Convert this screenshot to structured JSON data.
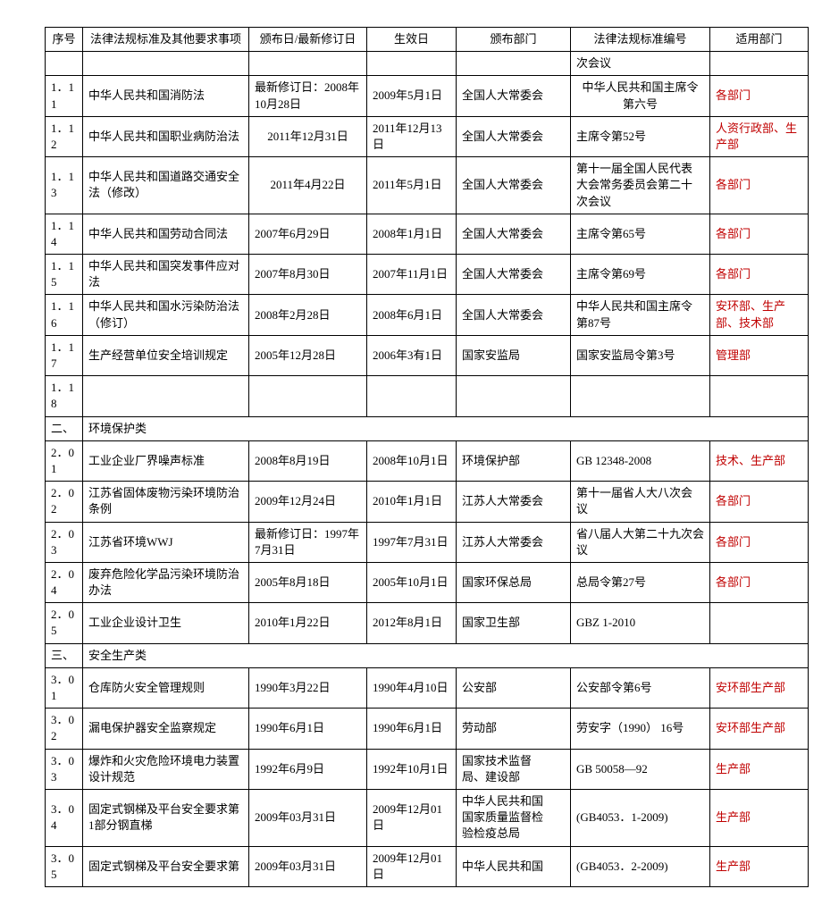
{
  "headers": [
    "序号",
    "法律法规标准及其他要求事项",
    "颁布日/最新修订日",
    "生效日",
    "颁布部门",
    "法律法规标准编号",
    "适用部门"
  ],
  "rows": [
    {
      "type": "row",
      "cells": [
        "",
        "",
        "",
        "",
        "",
        "次会议",
        ""
      ]
    },
    {
      "type": "row",
      "cells": [
        "1．11",
        "中华人民共和国消防法",
        "最新修订日：2008年 10月28日",
        "2009年5月1日",
        "全国人大常委会",
        "中华人民共和国主席令 第六号",
        "各部门"
      ],
      "red": true,
      "ctr5": true
    },
    {
      "type": "row",
      "cells": [
        "1．12",
        "中华人民共和国职业病防治法",
        "2011年12月31日",
        "2011年12月13日",
        "全国人大常委会",
        "主席令第52号",
        "人资行政部、生产部"
      ],
      "red": true,
      "ctr2": true
    },
    {
      "type": "row",
      "cells": [
        "1．13",
        "中华人民共和国道路交通安全法（修改）",
        "2011年4月22日",
        "2011年5月1日",
        "全国人大常委会",
        "第十一届全国人民代表 大会常务委员会第二十 次会议",
        "各部门"
      ],
      "red": true,
      "ctr2": true
    },
    {
      "type": "row",
      "cells": [
        "1．14",
        "中华人民共和国劳动合同法",
        "2007年6月29日",
        "2008年1月1日",
        "全国人大常委会",
        "主席令第65号",
        "各部门"
      ],
      "red": true
    },
    {
      "type": "row",
      "cells": [
        "1．15",
        "中华人民共和国突发事件应对法",
        "2007年8月30日",
        "2007年11月1日",
        "全国人大常委会",
        "主席令第69号",
        "各部门"
      ],
      "red": true
    },
    {
      "type": "row",
      "cells": [
        "1．16",
        "中华人民共和国水污染防治法（修订）",
        "2008年2月28日",
        "2008年6月1日",
        "全国人大常委会",
        "中华人民共和国主席令 第87号",
        "安环部、生产部、技术部"
      ],
      "red": true
    },
    {
      "type": "row",
      "cells": [
        "1．17",
        "生产经营单位安全培训规定",
        "2005年12月28日",
        "2006年3有1日",
        "国家安监局",
        "国家安监局令第3号",
        "管理部"
      ],
      "red": true
    },
    {
      "type": "row",
      "cells": [
        "1．18",
        "",
        "",
        "",
        "",
        "",
        ""
      ]
    },
    {
      "type": "sec",
      "label": "二、",
      "text": "环境保护类"
    },
    {
      "type": "row",
      "cells": [
        "2．01",
        "工业企业厂界噪声标准",
        "2008年8月19日",
        "2008年10月1日",
        "环境保护部",
        "GB 12348-2008",
        "技术、生产部"
      ],
      "red": true
    },
    {
      "type": "row",
      "cells": [
        "2．02",
        "江苏省固体废物污染环境防治 条例",
        "2009年12月24日",
        "2010年1月1日",
        "江苏人大常委会",
        "第十一届省人大八次会 议",
        "各部门"
      ],
      "red": true
    },
    {
      "type": "row",
      "cells": [
        "2．03",
        "江苏省环境WWJ",
        "最新修订日：1997年7月31日",
        "1997年7月31日",
        "江苏人大常委会",
        "省八届人大第二十九次会议",
        "各部门"
      ],
      "red": true
    },
    {
      "type": "row",
      "cells": [
        "2．04",
        "废弃危险化学品污染环境防治办法",
        "2005年8月18日",
        "2005年10月1日",
        "国家环保总局",
        "总局令第27号",
        "各部门"
      ],
      "red": true
    },
    {
      "type": "row",
      "cells": [
        "2．05",
        "工业企业设计卫生",
        "2010年1月22日",
        "2012年8月1日",
        "国家卫生部",
        "GBZ 1-2010",
        ""
      ]
    },
    {
      "type": "sec",
      "label": "三、",
      "text": "安全生产类"
    },
    {
      "type": "row",
      "cells": [
        "3．01",
        "仓库防火安全管理规则",
        "1990年3月22日",
        "1990年4月10日",
        "公安部",
        "公安部令第6号",
        "安环部生产部"
      ],
      "red": true
    },
    {
      "type": "row",
      "cells": [
        "3．02",
        "漏电保护器安全监察规定",
        "1990年6月1日",
        "1990年6月1日",
        "劳动部",
        "劳安字（1990） 16号",
        "安环部生产部"
      ],
      "red": true
    },
    {
      "type": "row",
      "cells": [
        "3．03",
        "爆炸和火灾危险环境电力装置 设计规范",
        "1992年6月9日",
        "1992年10月1日",
        "国家技术监督　局、建设部",
        "GB 50058—92",
        "生产部"
      ],
      "red": true
    },
    {
      "type": "row",
      "cells": [
        "3．04",
        "固定式钢梯及平台安全要求第 1部分钢直梯",
        "2009年03月31日",
        "2009年12月01日",
        "中华人民共和国　国家质量监督检　验检疫总局",
        "(GB4053．1-2009)",
        "生产部"
      ],
      "red": true
    },
    {
      "type": "row",
      "cells": [
        "3．05",
        "固定式钢梯及平台安全要求第",
        "2009年03月31日",
        "2009年12月01日",
        "中华人民共和国",
        "(GB4053．2-2009)",
        "生产部"
      ],
      "red": true
    }
  ]
}
